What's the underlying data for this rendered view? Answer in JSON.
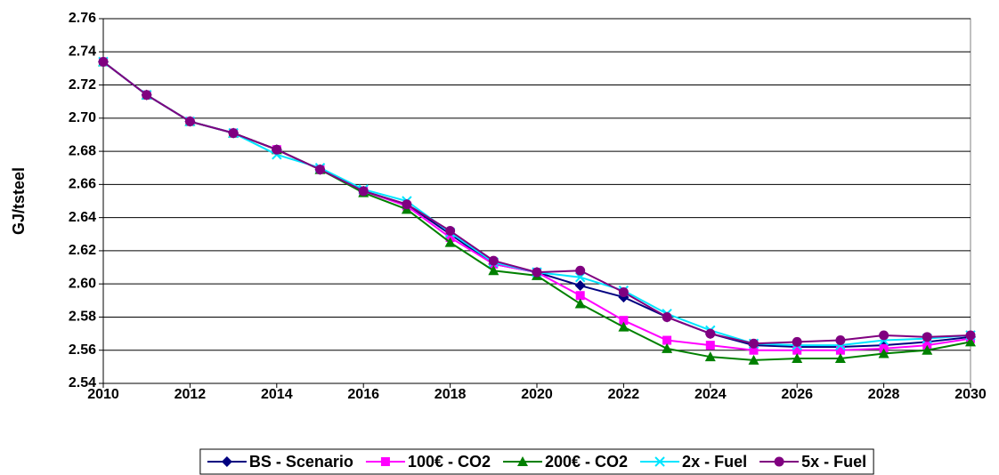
{
  "chart_data": {
    "type": "line",
    "y_label": "GJ/tsteel",
    "x": [
      2010,
      2011,
      2012,
      2013,
      2014,
      2015,
      2016,
      2017,
      2018,
      2019,
      2020,
      2021,
      2022,
      2023,
      2024,
      2025,
      2026,
      2027,
      2028,
      2029,
      2030
    ],
    "xlim": [
      2010,
      2030
    ],
    "xticks": [
      2010,
      2012,
      2014,
      2016,
      2018,
      2020,
      2022,
      2024,
      2026,
      2028,
      2030
    ],
    "ylim": [
      2.54,
      2.76
    ],
    "yticks": [
      2.54,
      2.56,
      2.58,
      {
        "value": 2.6,
        "label": "2.60"
      },
      2.62,
      2.64,
      2.66,
      2.68,
      {
        "value": 2.7,
        "label": "2.70"
      },
      2.72,
      2.74,
      2.76
    ],
    "grid": true,
    "legend": "bottom",
    "series": [
      {
        "name": "BS - Scenario",
        "color": "#000080",
        "marker": "diamond",
        "values": [
          2.734,
          2.714,
          2.698,
          2.691,
          2.681,
          2.669,
          2.656,
          2.648,
          2.63,
          2.612,
          2.607,
          2.599,
          2.592,
          2.58,
          2.57,
          2.563,
          2.562,
          2.562,
          2.563,
          2.565,
          2.568
        ]
      },
      {
        "name": "100€ - CO2",
        "color": "#ff00ff",
        "marker": "square",
        "values": [
          2.734,
          2.714,
          2.698,
          2.691,
          2.681,
          2.669,
          2.656,
          2.647,
          2.628,
          2.612,
          2.607,
          2.593,
          2.578,
          2.566,
          2.563,
          2.56,
          2.56,
          2.56,
          2.561,
          2.563,
          2.567
        ]
      },
      {
        "name": "200€ - CO2",
        "color": "#008000",
        "marker": "triangle",
        "values": [
          2.734,
          2.714,
          2.698,
          2.691,
          2.681,
          2.669,
          2.655,
          2.645,
          2.625,
          2.608,
          2.605,
          2.588,
          2.574,
          2.561,
          2.556,
          2.554,
          2.555,
          2.555,
          2.558,
          2.56,
          2.565
        ]
      },
      {
        "name": "2x - Fuel",
        "color": "#00e5ff",
        "marker": "x",
        "values": [
          2.734,
          2.714,
          2.698,
          2.691,
          2.678,
          2.67,
          2.657,
          2.65,
          2.631,
          2.613,
          2.607,
          2.604,
          2.596,
          2.582,
          2.572,
          2.564,
          2.563,
          2.563,
          2.566,
          2.567,
          2.569
        ]
      },
      {
        "name": "5x - Fuel",
        "color": "#800080",
        "marker": "circle",
        "values": [
          2.734,
          2.714,
          2.698,
          2.691,
          2.681,
          2.669,
          2.656,
          2.648,
          2.632,
          2.614,
          2.607,
          2.608,
          2.595,
          2.58,
          2.57,
          2.564,
          2.565,
          2.566,
          2.569,
          2.568,
          2.569
        ]
      }
    ]
  }
}
